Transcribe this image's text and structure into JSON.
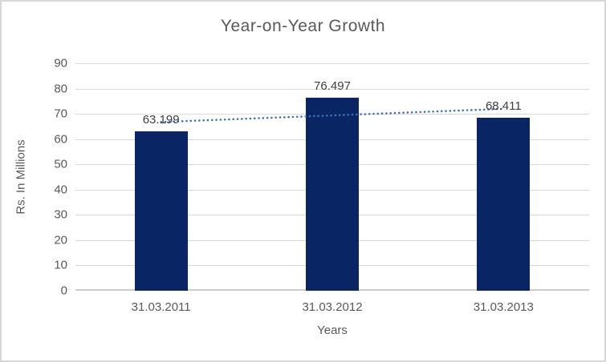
{
  "chart_data": {
    "type": "bar",
    "title": "Year-on-Year Growth",
    "categories": [
      "31.03.2011",
      "31.03.2012",
      "31.03.2013"
    ],
    "values": [
      63.199,
      76.497,
      68.411
    ],
    "data_labels": [
      "63.199",
      "76.497",
      "68.411"
    ],
    "xlabel": "Years",
    "ylabel": "Rs. In Millions",
    "ylim": [
      0,
      90
    ],
    "ytick_step": 10,
    "ytick_labels": [
      "0",
      "10",
      "20",
      "30",
      "40",
      "50",
      "60",
      "70",
      "80",
      "90"
    ],
    "grid": true,
    "legend": false,
    "trendline": {
      "type": "linear",
      "style": "dotted",
      "color": "#3B72B9"
    },
    "colors": {
      "bar": "#0A2563",
      "grid": "#D9D9D9",
      "axis_line": "#CDCDCD",
      "text": "#595959",
      "data_label_text": "#3F3F3F",
      "title_text": "#595959",
      "background": "#FFFFFF",
      "border": "#D7D7D7"
    }
  }
}
